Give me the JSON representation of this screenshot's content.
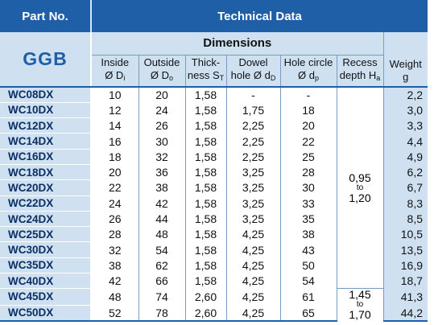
{
  "header": {
    "part_no": "Part No.",
    "technical_data": "Technical Data",
    "brand": "GGB",
    "dimensions": "Dimensions"
  },
  "columns": [
    {
      "line1": "Inside",
      "line2": "Ø D",
      "sub": "i"
    },
    {
      "line1": "Outside",
      "line2": "Ø D",
      "sub": "o"
    },
    {
      "line1": "Thick-",
      "line2": "ness S",
      "sub": "T"
    },
    {
      "line1": "Dowel",
      "line2": "hole Ø d",
      "sub": "D"
    },
    {
      "line1": "Hole circle",
      "line2": "Ø d",
      "sub": "p"
    },
    {
      "line1": "Recess",
      "line2": "depth H",
      "sub": "a"
    },
    {
      "line1": "Weight",
      "line2": "g",
      "sub": ""
    }
  ],
  "recess": {
    "group1": {
      "from": "0,95",
      "to_word": "to",
      "to": "1,20"
    },
    "group2": {
      "from": "1,45",
      "to_word": "to",
      "to": "1,70"
    }
  },
  "rows": [
    {
      "part": "WC08DX",
      "di": "10",
      "do": "20",
      "st": "1,58",
      "dd": "-",
      "dp": "-",
      "g": "2,2"
    },
    {
      "part": "WC10DX",
      "di": "12",
      "do": "24",
      "st": "1,58",
      "dd": "1,75",
      "dp": "18",
      "g": "3,0"
    },
    {
      "part": "WC12DX",
      "di": "14",
      "do": "26",
      "st": "1,58",
      "dd": "2,25",
      "dp": "20",
      "g": "3,3"
    },
    {
      "part": "WC14DX",
      "di": "16",
      "do": "30",
      "st": "1,58",
      "dd": "2,25",
      "dp": "22",
      "g": "4,4"
    },
    {
      "part": "WC16DX",
      "di": "18",
      "do": "32",
      "st": "1,58",
      "dd": "2,25",
      "dp": "25",
      "g": "4,9"
    },
    {
      "part": "WC18DX",
      "di": "20",
      "do": "36",
      "st": "1,58",
      "dd": "3,25",
      "dp": "28",
      "g": "6,2"
    },
    {
      "part": "WC20DX",
      "di": "22",
      "do": "38",
      "st": "1,58",
      "dd": "3,25",
      "dp": "30",
      "g": "6,7"
    },
    {
      "part": "WC22DX",
      "di": "24",
      "do": "42",
      "st": "1,58",
      "dd": "3,25",
      "dp": "33",
      "g": "8,3"
    },
    {
      "part": "WC24DX",
      "di": "26",
      "do": "44",
      "st": "1,58",
      "dd": "3,25",
      "dp": "35",
      "g": "8,5"
    },
    {
      "part": "WC25DX",
      "di": "28",
      "do": "48",
      "st": "1,58",
      "dd": "4,25",
      "dp": "38",
      "g": "10,5"
    },
    {
      "part": "WC30DX",
      "di": "32",
      "do": "54",
      "st": "1,58",
      "dd": "4,25",
      "dp": "43",
      "g": "13,5"
    },
    {
      "part": "WC35DX",
      "di": "38",
      "do": "62",
      "st": "1,58",
      "dd": "4,25",
      "dp": "50",
      "g": "16,9"
    },
    {
      "part": "WC40DX",
      "di": "42",
      "do": "66",
      "st": "1,58",
      "dd": "4,25",
      "dp": "54",
      "g": "18,7"
    },
    {
      "part": "WC45DX",
      "di": "48",
      "do": "74",
      "st": "2,60",
      "dd": "4,25",
      "dp": "61",
      "g": "41,3"
    },
    {
      "part": "WC50DX",
      "di": "52",
      "do": "78",
      "st": "2,60",
      "dd": "4,25",
      "dp": "65",
      "g": "44,2"
    }
  ]
}
